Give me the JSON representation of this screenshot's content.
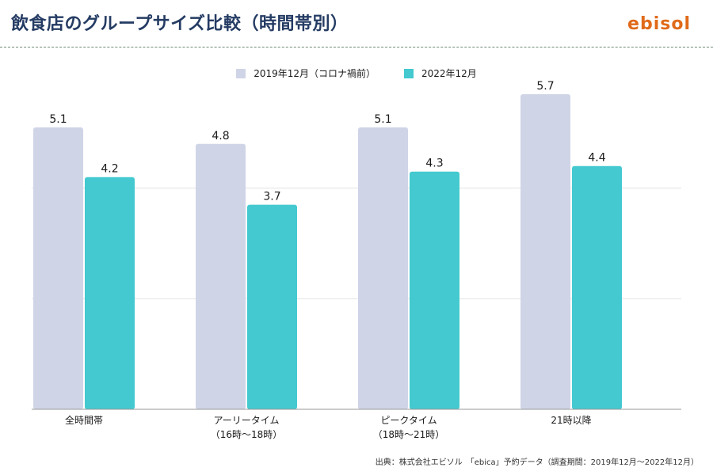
{
  "header": {
    "title": "飲食店のグループサイズ比較（時間帯別）",
    "logo_text": "ebisol"
  },
  "source_note": "出典：株式会社エビソル　「ebica」予約データ（調査期間：2019年12月〜2022年12月）",
  "colors": {
    "series1": "#d0d4e7",
    "series2": "#43c9cf",
    "title": "#243b63",
    "logo": "#e06a1a",
    "grid": "#e2e2e2",
    "axis": "#999999"
  },
  "chart_data": {
    "type": "bar",
    "categories": [
      [
        "全時間帯"
      ],
      [
        "アーリータイム",
        "（16時〜18時）"
      ],
      [
        "ピークタイム",
        "（18時〜21時）"
      ],
      [
        "21時以降"
      ]
    ],
    "series": [
      {
        "name": "2019年12月（コロナ禍前）",
        "values": [
          5.1,
          4.8,
          5.1,
          5.7
        ]
      },
      {
        "name": "2022年12月",
        "values": [
          4.2,
          3.7,
          4.3,
          4.4
        ]
      }
    ],
    "ylim": [
      0,
      6
    ],
    "gridlines": [
      2,
      4
    ],
    "legend_position": "top-center",
    "data_labels": true
  }
}
